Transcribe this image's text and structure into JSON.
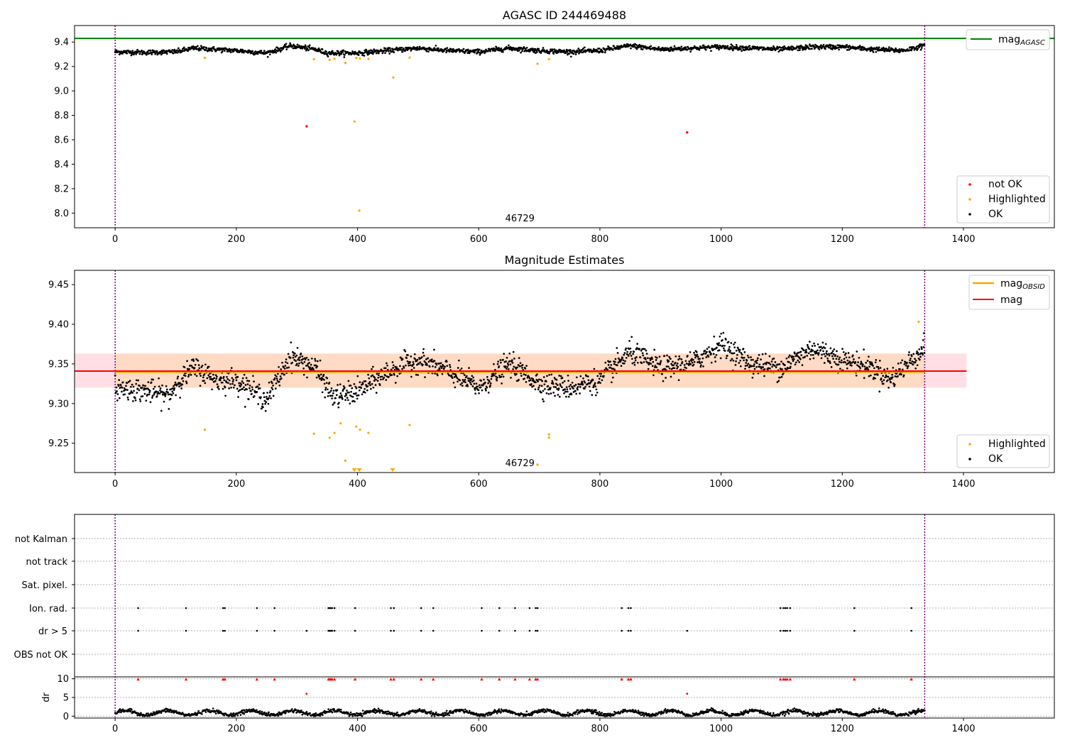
{
  "figure": {
    "title": "AGASC ID 244469488",
    "colors": {
      "ok": "#000000",
      "highlighted": "#ffa500",
      "not_ok": "#ff0000",
      "mag_agasc": "#008000",
      "mag_obsid": "#ffa500",
      "mag": "#ff0000",
      "obs_span": "#800080",
      "band": "#ffc0cb",
      "band_inner": "#ffdab9"
    }
  },
  "chart_data": [
    {
      "type": "scatter",
      "title": "AGASC ID 244469488",
      "xlim": [
        -67,
        1550
      ],
      "ylim": [
        7.88,
        9.535
      ],
      "xticks": [
        "0",
        "200",
        "400",
        "600",
        "800",
        "1000",
        "1200",
        "1400"
      ],
      "yticks": [
        "8.0",
        "8.2",
        "8.4",
        "8.6",
        "8.8",
        "9.0",
        "9.2",
        "9.4"
      ],
      "hline": {
        "name": "mag_AGASC",
        "label_base": "mag",
        "label_sub": "AGASC",
        "y": 9.43,
        "color": "#008000"
      },
      "obsid_span": [
        0,
        1336
      ],
      "obsid_label": "46729",
      "ok_trend": {
        "x_range": [
          0,
          1336
        ],
        "anchor_x": [
          0,
          50,
          100,
          130,
          200,
          250,
          290,
          330,
          350,
          400,
          450,
          500,
          550,
          600,
          650,
          700,
          750,
          800,
          850,
          900,
          950,
          1000,
          1050,
          1100,
          1150,
          1200,
          1250,
          1300,
          1336
        ],
        "anchor_y": [
          9.32,
          9.315,
          9.32,
          9.35,
          9.33,
          9.31,
          9.37,
          9.34,
          9.31,
          9.31,
          9.33,
          9.35,
          9.33,
          9.32,
          9.35,
          9.33,
          9.32,
          9.33,
          9.37,
          9.34,
          9.35,
          9.36,
          9.35,
          9.34,
          9.36,
          9.36,
          9.34,
          9.33,
          9.37
        ],
        "noise": 0.018
      },
      "highlighted": {
        "x": [
          148,
          328,
          354,
          362,
          380,
          398,
          404,
          418,
          459,
          486,
          697,
          716
        ],
        "y": [
          9.27,
          9.26,
          9.255,
          9.263,
          9.228,
          9.27,
          9.265,
          9.262,
          9.11,
          9.273,
          9.222,
          9.26
        ]
      },
      "highlighted_outliers": {
        "x": [
          395,
          403
        ],
        "y": [
          8.75,
          8.02
        ]
      },
      "not_ok": {
        "x": [
          316,
          944
        ],
        "y": [
          8.71,
          8.66
        ]
      },
      "legend": {
        "position": "lower-right",
        "entries": [
          "not OK",
          "Highlighted",
          "OK"
        ]
      }
    },
    {
      "type": "scatter",
      "title": "Magnitude Estimates",
      "xlim": [
        -67,
        1550
      ],
      "ylim": [
        9.213,
        9.468
      ],
      "xticks": [
        "0",
        "200",
        "400",
        "600",
        "800",
        "1000",
        "1200",
        "1400"
      ],
      "yticks": [
        "9.25",
        "9.30",
        "9.35",
        "9.40",
        "9.45"
      ],
      "mag": {
        "label": "mag",
        "y": 9.341,
        "color": "#ff0000",
        "band": [
          9.32,
          9.363
        ],
        "x_range": [
          -67,
          1405
        ]
      },
      "mag_obsid": {
        "label_base": "mag",
        "label_sub": "OBSID",
        "y": 9.34,
        "x_range": [
          0,
          1336
        ],
        "band": [
          9.32,
          9.363
        ]
      },
      "obsid_span": [
        0,
        1336
      ],
      "obsid_label": "46729",
      "ok_trend": {
        "x_range": [
          0,
          1336
        ],
        "anchor_x": [
          0,
          30,
          60,
          90,
          100,
          130,
          170,
          200,
          250,
          290,
          330,
          360,
          400,
          450,
          500,
          550,
          600,
          650,
          700,
          750,
          800,
          850,
          900,
          950,
          1000,
          1050,
          1100,
          1150,
          1200,
          1250,
          1280,
          1300,
          1336
        ],
        "anchor_y": [
          9.32,
          9.318,
          9.315,
          9.31,
          9.325,
          9.345,
          9.33,
          9.33,
          9.305,
          9.36,
          9.345,
          9.308,
          9.315,
          9.34,
          9.355,
          9.34,
          9.32,
          9.35,
          9.325,
          9.32,
          9.33,
          9.365,
          9.345,
          9.35,
          9.375,
          9.35,
          9.345,
          9.37,
          9.355,
          9.345,
          9.33,
          9.345,
          9.37
        ],
        "noise": 0.013
      },
      "highlighted": {
        "x": [
          148,
          328,
          354,
          362,
          372,
          380,
          398,
          404,
          418,
          486,
          716,
          716,
          697,
          1326
        ],
        "y": [
          9.267,
          9.262,
          9.257,
          9.263,
          9.275,
          9.228,
          9.271,
          9.267,
          9.263,
          9.273,
          9.261,
          9.257,
          9.223,
          9.403
        ]
      },
      "highlighted_clipped_x": [
        395,
        403,
        458
      ],
      "legend": {
        "position": "lower-right",
        "entries": [
          "Highlighted",
          "OK"
        ]
      },
      "legend_lines": {
        "position": "upper-right",
        "entries": [
          "mag_OBSID",
          "mag"
        ]
      }
    },
    {
      "type": "scatter",
      "title": "",
      "xlim": [
        -67,
        1550
      ],
      "categories": [
        "not Kalman",
        "not track",
        "Sat. pixel.",
        "Ion. rad.",
        "dr > 5",
        "OBS not OK"
      ],
      "ion_rad_x": [
        38,
        117,
        178,
        181,
        234,
        263,
        352,
        354,
        356,
        358,
        362,
        396,
        455,
        460,
        505,
        525,
        605,
        634,
        660,
        684,
        694,
        697,
        836,
        847,
        851,
        1098,
        1103,
        1106,
        1109,
        1114,
        1220,
        1314
      ],
      "dr5_x": [
        38,
        117,
        178,
        181,
        234,
        263,
        316,
        352,
        354,
        356,
        358,
        362,
        396,
        455,
        460,
        505,
        525,
        605,
        634,
        660,
        684,
        694,
        697,
        836,
        847,
        851,
        944,
        1098,
        1103,
        1106,
        1109,
        1114,
        1220,
        1314
      ],
      "obsid_span": [
        0,
        1336
      ],
      "dr": {
        "ylabel": "dr",
        "ylim": [
          -0.5,
          10.5
        ],
        "yticks": [
          "0",
          "5",
          "10"
        ],
        "top_x": [
          38,
          117,
          178,
          181,
          234,
          263,
          352,
          354,
          356,
          358,
          362,
          396,
          455,
          460,
          505,
          525,
          605,
          634,
          660,
          684,
          694,
          697,
          836,
          847,
          851,
          1098,
          1103,
          1106,
          1109,
          1114,
          1220,
          1314
        ],
        "top_y": 10,
        "outliers_x": [
          316,
          944
        ],
        "outliers_y": [
          6,
          6
        ],
        "base_noise": 0.6
      },
      "xticks": [
        "0",
        "200",
        "400",
        "600",
        "800",
        "1000",
        "1200",
        "1400"
      ]
    }
  ]
}
